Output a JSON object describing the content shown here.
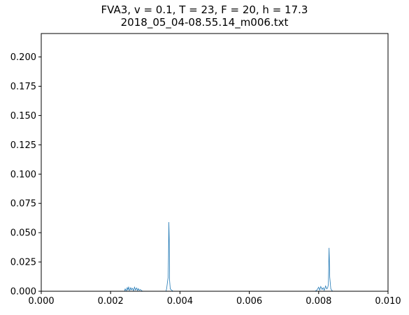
{
  "chart_data": {
    "type": "line",
    "title_line1": "FVA3, v = 0.1, T = 23, F = 20, h = 17.3",
    "title_line2": "2018_05_04-08.55.14_m006.txt",
    "xlabel": "",
    "ylabel": "",
    "xlim": [
      0.0,
      0.01
    ],
    "ylim": [
      0.0,
      0.22
    ],
    "x_ticks": [
      "0.000",
      "0.002",
      "0.004",
      "0.006",
      "0.008",
      "0.010"
    ],
    "y_ticks": [
      "0.000",
      "0.025",
      "0.050",
      "0.075",
      "0.100",
      "0.125",
      "0.150",
      "0.175",
      "0.200"
    ],
    "grid": false,
    "line_color": "#1f77b4",
    "series": [
      {
        "x": [
          0.0,
          0.0024,
          0.00242,
          0.00245,
          0.00248,
          0.0025,
          0.00252,
          0.00255,
          0.00258,
          0.0026,
          0.00263,
          0.00266,
          0.00269,
          0.00272,
          0.00275,
          0.00278,
          0.0028,
          0.00283,
          0.00286,
          0.0029,
          0.00295,
          0.0036,
          0.00362,
          0.00364,
          0.00366,
          0.00367,
          0.00368,
          0.00369,
          0.0037,
          0.00372,
          0.0038,
          0.0079,
          0.00795,
          0.008,
          0.00803,
          0.00806,
          0.0081,
          0.00813,
          0.00816,
          0.0082,
          0.00823,
          0.00826,
          0.00828,
          0.0083,
          0.00832,
          0.00835,
          0.0084,
          0.01
        ],
        "y": [
          0.0,
          0.0,
          0.002,
          0.0005,
          0.003,
          0.001,
          0.0035,
          0.0008,
          0.003,
          0.0012,
          0.0025,
          0.0005,
          0.0035,
          0.001,
          0.0028,
          0.0006,
          0.0022,
          0.0008,
          0.0015,
          0.0003,
          0.0,
          0.0,
          0.003,
          0.008,
          0.012,
          0.03,
          0.059,
          0.045,
          0.01,
          0.002,
          0.0,
          0.0,
          0.001,
          0.0035,
          0.001,
          0.004,
          0.0015,
          0.003,
          0.0008,
          0.0045,
          0.002,
          0.003,
          0.006,
          0.037,
          0.012,
          0.002,
          0.0,
          0.0
        ]
      }
    ]
  }
}
